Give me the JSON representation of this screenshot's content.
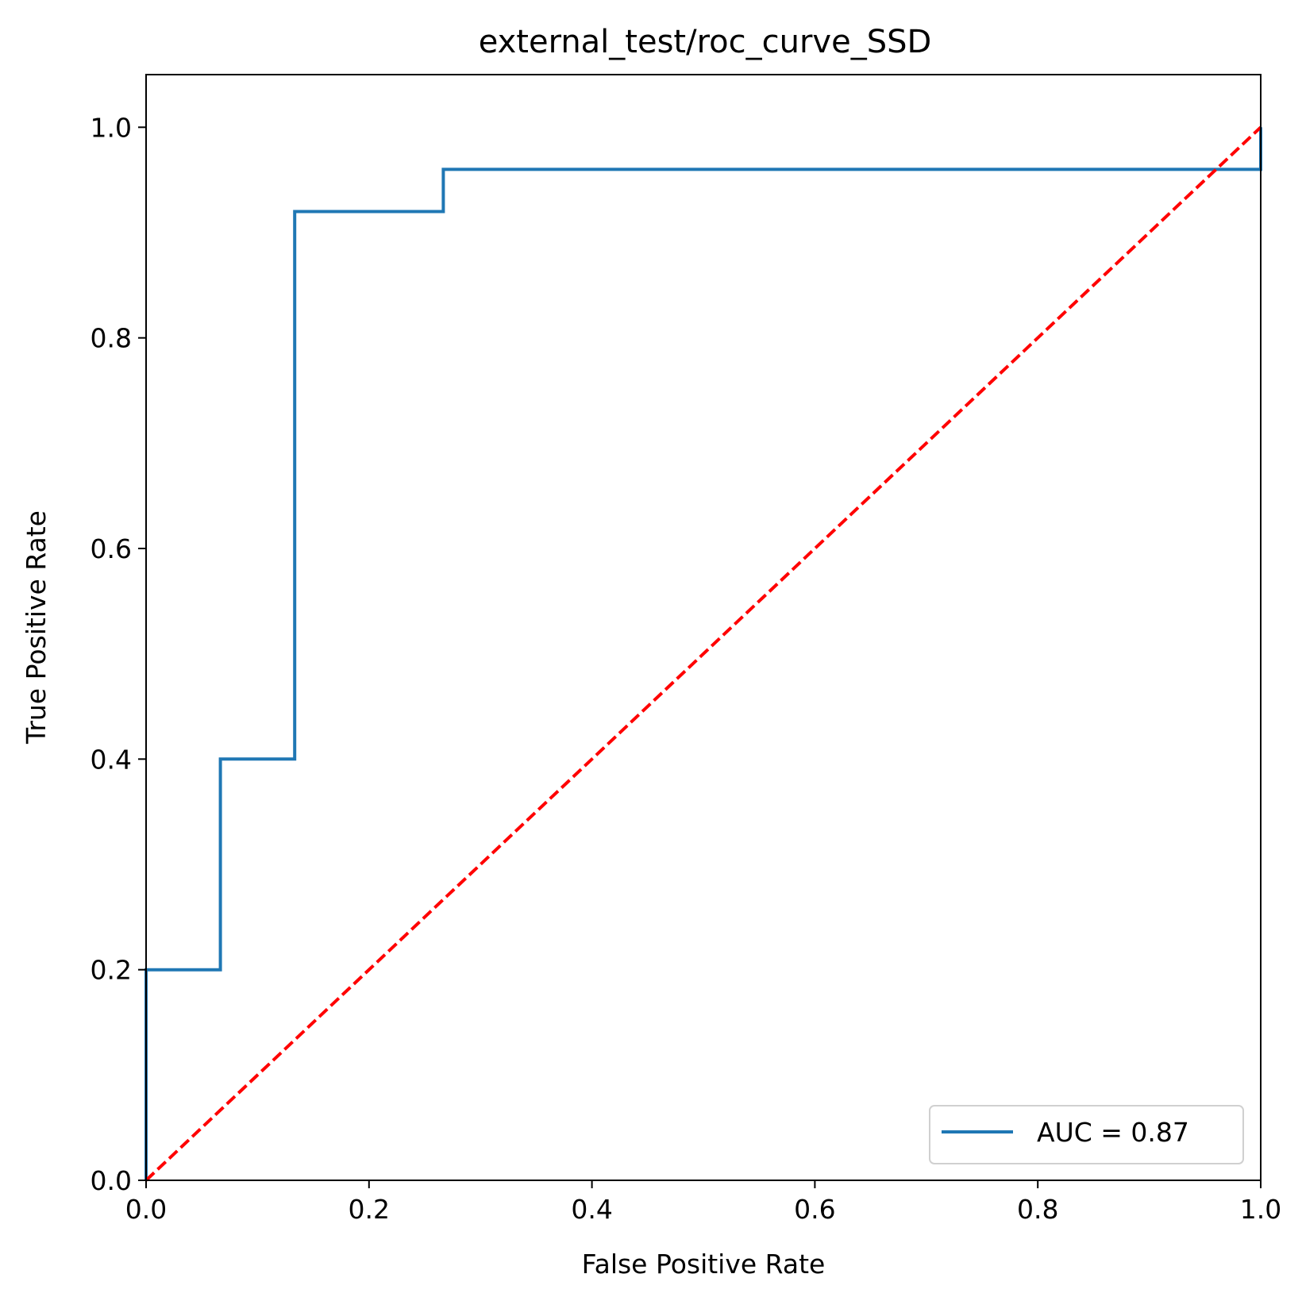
{
  "chart_data": {
    "type": "line",
    "title": "external_test/roc_curve_SSD",
    "xlabel": "False Positive Rate",
    "ylabel": "True Positive Rate",
    "xlim": [
      0.0,
      1.0
    ],
    "ylim": [
      0.0,
      1.05
    ],
    "xticks": [
      "0.0",
      "0.2",
      "0.4",
      "0.6",
      "0.8",
      "1.0"
    ],
    "yticks": [
      "0.0",
      "0.2",
      "0.4",
      "0.6",
      "0.8",
      "1.0"
    ],
    "grid": false,
    "legend": {
      "position": "lower-right"
    },
    "series": [
      {
        "name": "AUC = 0.87",
        "color": "#1f77b4",
        "style": "solid",
        "x": [
          0.0,
          0.0,
          0.0667,
          0.0667,
          0.1333,
          0.1333,
          0.2667,
          0.2667,
          1.0,
          1.0
        ],
        "y": [
          0.0,
          0.2,
          0.2,
          0.4,
          0.4,
          0.92,
          0.92,
          0.96,
          0.96,
          1.0
        ]
      },
      {
        "color": "#ff0000",
        "style": "dashed",
        "x": [
          0.0,
          1.0
        ],
        "y": [
          0.0,
          1.0
        ]
      }
    ]
  }
}
